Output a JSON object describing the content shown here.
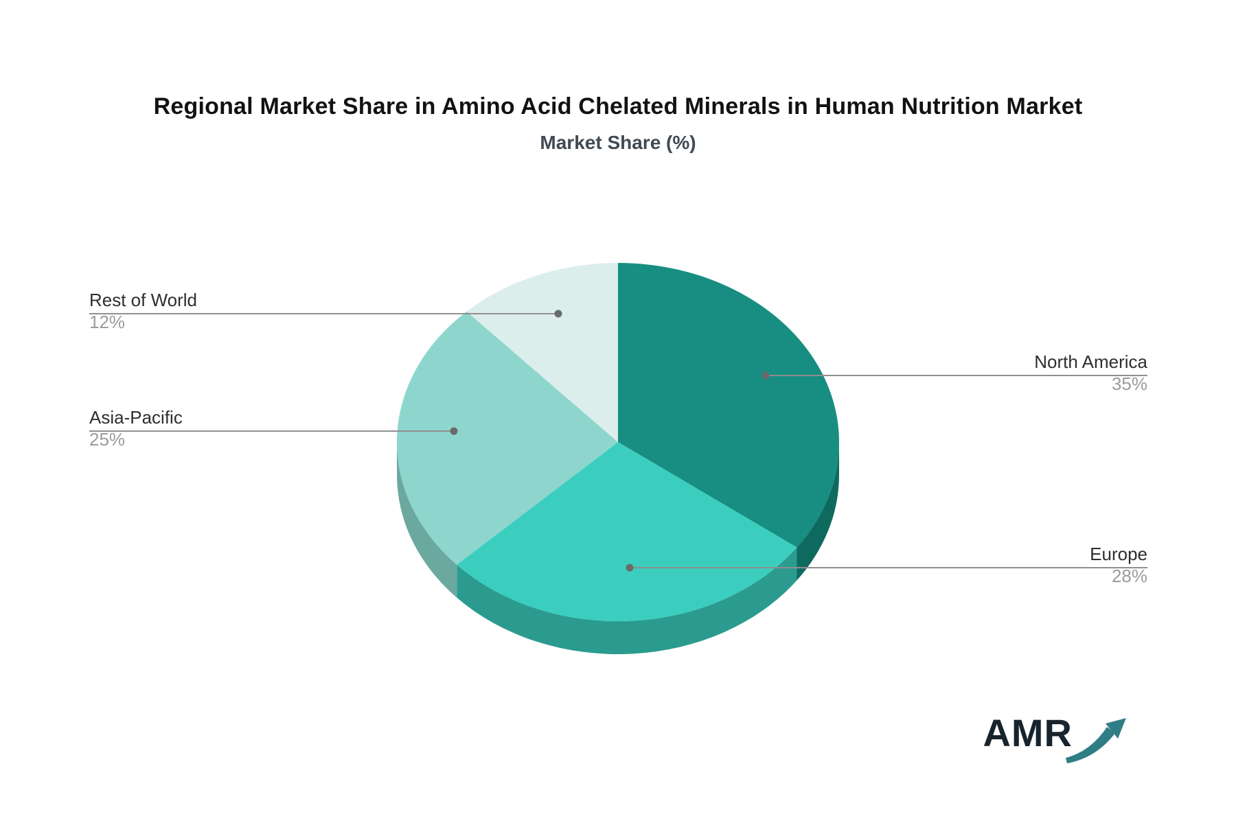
{
  "chart_data": {
    "type": "pie",
    "style": "3d-pie",
    "title": "Regional Market Share in Amino Acid Chelated Minerals in Human Nutrition Market",
    "subtitle": "Market Share (%)",
    "legend_position": "none",
    "labels_layout": "callout-leader-lines",
    "slices": [
      {
        "label": "North America",
        "value": 35,
        "pct_label": "35%",
        "color": "#178e81",
        "side_color": "#0e6a5f"
      },
      {
        "label": "Europe",
        "value": 28,
        "pct_label": "28%",
        "color": "#3bcebf",
        "side_color": "#2b9b90"
      },
      {
        "label": "Asia-Pacific",
        "value": 25,
        "pct_label": "25%",
        "color": "#8ed6cd",
        "side_color": "#6ba9a0"
      },
      {
        "label": "Rest of World",
        "value": 12,
        "pct_label": "12%",
        "color": "#dceeeb",
        "side_color": "#dceeeb"
      }
    ],
    "start_angle_deg": 0,
    "direction": "clockwise",
    "leader_line_color": "#8f8f8f",
    "leader_dot_color": "#6a6a6a"
  },
  "branding": {
    "logo_text": "AMR"
  }
}
